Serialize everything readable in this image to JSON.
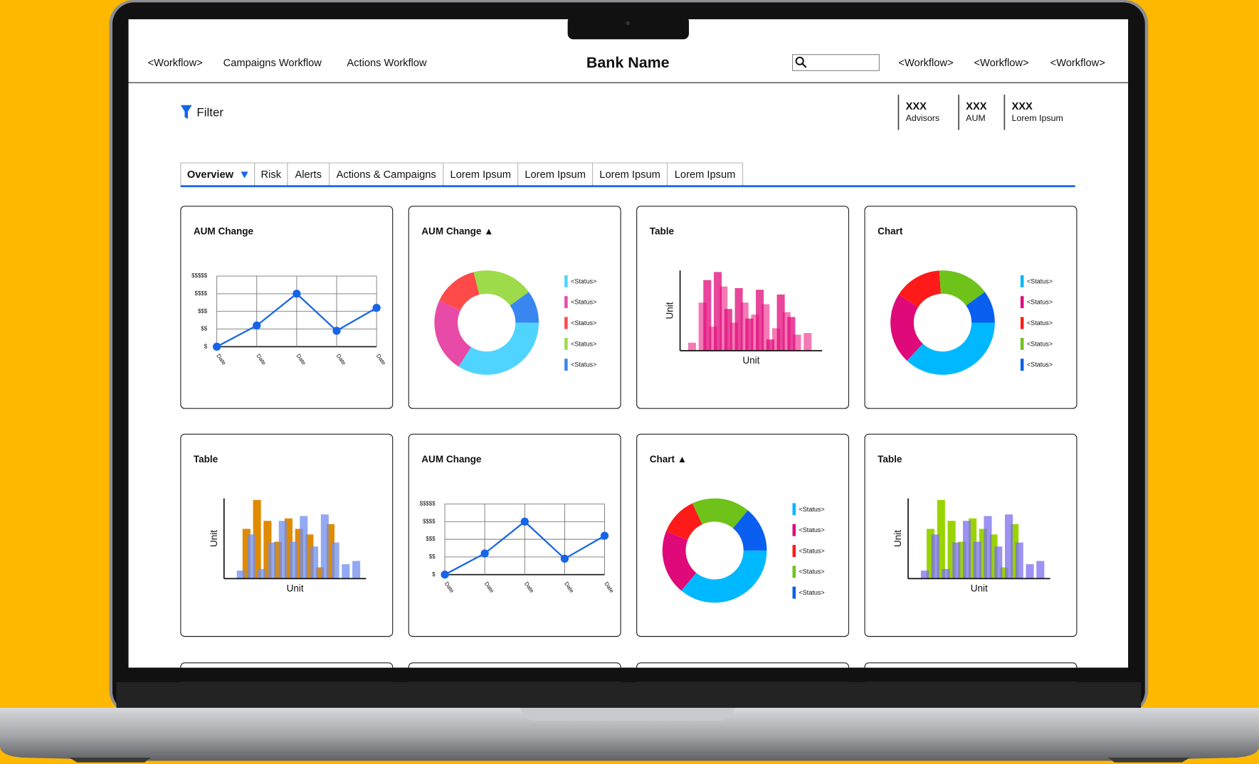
{
  "nav": {
    "left": [
      "<Workflow>",
      "Campaigns Workflow",
      "Actions Workflow"
    ],
    "title": "Bank Name",
    "right": [
      "<Workflow>",
      "<Workflow>",
      "<Workflow>"
    ]
  },
  "filter": "Filter",
  "stats": [
    {
      "value": "XXX",
      "label": "Advisors"
    },
    {
      "value": "XXX",
      "label": "AUM"
    },
    {
      "value": "XXX",
      "label": "Lorem Ipsum"
    }
  ],
  "tabs": [
    "Overview",
    "Risk",
    "Alerts",
    "Actions & Campaigns",
    "Lorem Ipsum",
    "Lorem Ipsum",
    "Lorem Ipsum",
    "Lorem Ipsum"
  ],
  "cards": [
    {
      "title": "AUM Change",
      "chart": {
        "type": "line",
        "categories": [
          "Date",
          "Date",
          "Date",
          "Date",
          "Date"
        ],
        "values": [
          0,
          1.2,
          3,
          0.9,
          2.2
        ],
        "color": "#1565e8",
        "ylim": [
          0,
          4
        ],
        "yticks": [
          {
            "value": 0,
            "label": "$"
          },
          {
            "value": 1,
            "label": "$$"
          },
          {
            "value": 2,
            "label": "$$$"
          },
          {
            "value": 3,
            "label": "$$$$"
          },
          {
            "value": 4,
            "label": "$$$$$"
          }
        ],
        "grid": true
      }
    },
    {
      "title": "AUM Change ▲",
      "chart": {
        "type": "donut",
        "categories": [
          "<Status>",
          "<Status>",
          "<Status>",
          "<Status>",
          "<Status>"
        ],
        "values": [
          34,
          23,
          14,
          19,
          10
        ],
        "colors": [
          "#4fd4ff",
          "#e84aa8",
          "#ff4a4a",
          "#9ddb4a",
          "#3a86f0"
        ]
      }
    },
    {
      "title": "Table",
      "chart": {
        "type": "bar",
        "xlabel": "Unit",
        "ylabel": "Unit",
        "ylim": [
          0,
          100
        ],
        "series": [
          {
            "color": "#f37ab6",
            "values": [
              10,
              60,
              30,
              80,
              35,
              60,
              45,
              58,
              28,
              48,
              20,
              22
            ]
          },
          {
            "color": "#e0097a",
            "values": [
              0,
              88,
              98,
              52,
              78,
              40,
              76,
              14,
              70,
              42,
              0,
              0
            ]
          }
        ]
      }
    },
    {
      "title": "Chart",
      "chart": {
        "type": "donut",
        "categories": [
          "<Status>",
          "<Status>",
          "<Status>",
          "<Status>",
          "<Status>"
        ],
        "values": [
          37,
          22,
          15,
          16,
          10
        ],
        "colors": [
          "#00b8ff",
          "#e0097a",
          "#ff1a1a",
          "#6ec21a",
          "#0a5ef0"
        ]
      }
    },
    {
      "title": "Table",
      "chart": {
        "type": "bar",
        "xlabel": "Unit",
        "ylabel": "Unit",
        "ylim": [
          0,
          100
        ],
        "series": [
          {
            "color": "#e08a00",
            "values": [
              0,
              62,
              98,
              72,
              46,
              75,
              62,
              55,
              14,
              68,
              0,
              0
            ]
          },
          {
            "color": "#6d8df0",
            "values": [
              10,
              55,
              12,
              45,
              72,
              46,
              78,
              40,
              80,
              45,
              18,
              22
            ]
          }
        ]
      }
    },
    {
      "title": "AUM Change",
      "chart": {
        "type": "line",
        "categories": [
          "Date",
          "Date",
          "Date",
          "Date",
          "Date"
        ],
        "values": [
          0,
          1.2,
          3,
          0.9,
          2.2
        ],
        "color": "#1565e8",
        "ylim": [
          0,
          4
        ],
        "yticks": [
          {
            "value": 0,
            "label": "$"
          },
          {
            "value": 1,
            "label": "$$"
          },
          {
            "value": 2,
            "label": "$$$"
          },
          {
            "value": 3,
            "label": "$$$$"
          },
          {
            "value": 4,
            "label": "$$$$$"
          }
        ],
        "grid": true
      }
    },
    {
      "title": "Chart ▲",
      "chart": {
        "type": "donut",
        "categories": [
          "<Status>",
          "<Status>",
          "<Status>",
          "<Status>",
          "<Status>"
        ],
        "values": [
          36,
          20,
          12,
          18,
          14
        ],
        "colors": [
          "#00b8ff",
          "#e0097a",
          "#ff1a1a",
          "#6ec21a",
          "#0a5ef0"
        ]
      }
    },
    {
      "title": "Table",
      "chart": {
        "type": "bar",
        "xlabel": "Unit",
        "ylabel": "Unit",
        "ylim": [
          0,
          100
        ],
        "series": [
          {
            "color": "#9ad400",
            "values": [
              0,
              62,
              98,
              72,
              46,
              75,
              62,
              55,
              14,
              68,
              0,
              0
            ]
          },
          {
            "color": "#7a6df0",
            "values": [
              10,
              55,
              12,
              45,
              72,
              46,
              78,
              40,
              80,
              45,
              18,
              22
            ]
          }
        ]
      }
    }
  ]
}
